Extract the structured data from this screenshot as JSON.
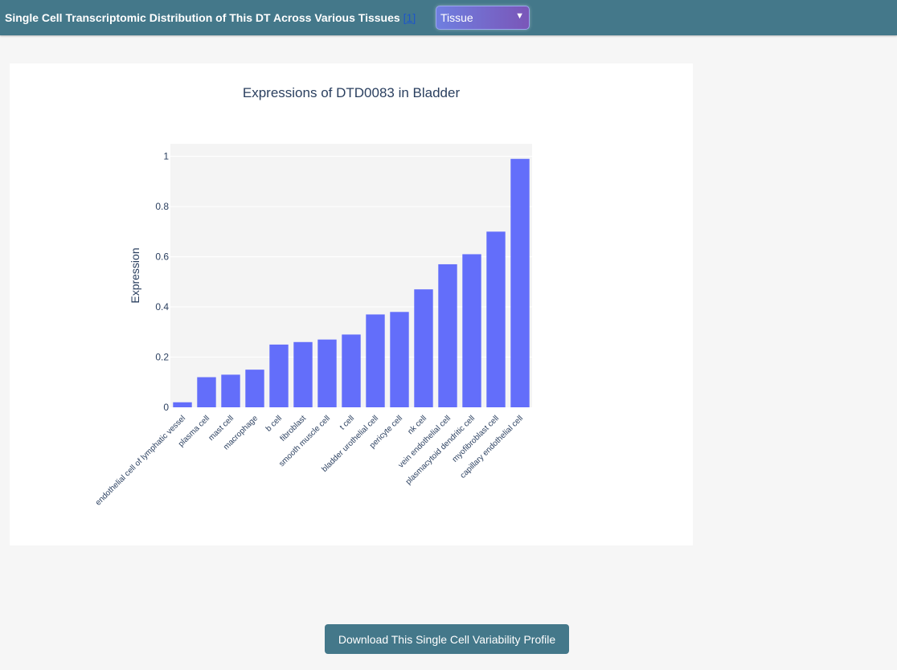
{
  "header": {
    "title": "Single Cell Transcriptomic Distribution of This DT Across Various Tissues",
    "ref_link": "[1]",
    "select_value": "Tissue",
    "select_caret": "▼",
    "background": "#44788a"
  },
  "chart_data": {
    "type": "bar",
    "title": "Expressions of DTD0083 in Bladder",
    "xlabel": "",
    "ylabel": "Expression",
    "ylim": [
      0,
      1.05
    ],
    "yticks": [
      0,
      0.2,
      0.4,
      0.6,
      0.8,
      1
    ],
    "ytick_labels": [
      "0",
      "0.2",
      "0.4",
      "0.6",
      "0.8",
      "1"
    ],
    "grid": true,
    "bar_color": "#636efa",
    "plot_bg": "#f4f4f4",
    "categories": [
      "endothelial cell of lymphatic vessel",
      "plasma cell",
      "mast cell",
      "macrophage",
      "b cell",
      "fibroblast",
      "smooth muscle cell",
      "t cell",
      "bladder urothelial cell",
      "pericyte cell",
      "nk cell",
      "vein endothelial cell",
      "plasmacytoid dendritic cell",
      "myofibroblast cell",
      "capillary endothelial cell"
    ],
    "values": [
      0.02,
      0.12,
      0.13,
      0.15,
      0.25,
      0.26,
      0.27,
      0.29,
      0.37,
      0.38,
      0.47,
      0.57,
      0.61,
      0.7,
      0.99
    ]
  },
  "footer": {
    "download_label": "Download This Single Cell Variability Profile"
  }
}
